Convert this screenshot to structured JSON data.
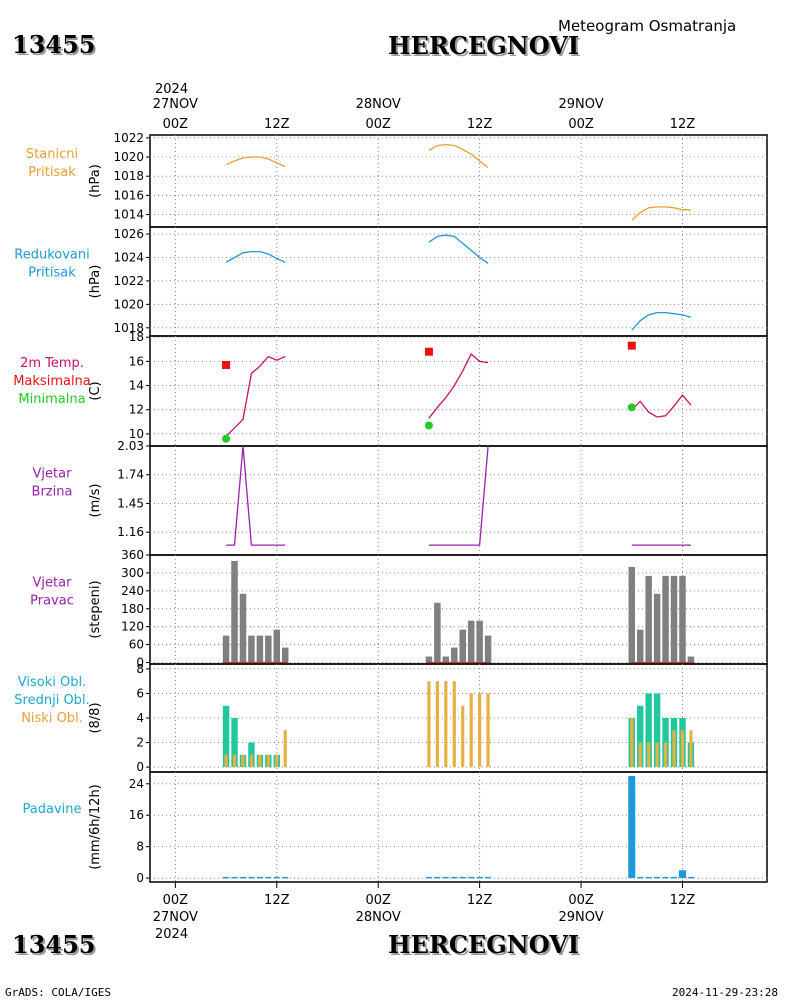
{
  "header": {
    "station_id": "13455",
    "station_name": "HERCEGNOVI",
    "subtitle": "Meteogram Osmatranja"
  },
  "time_axis": {
    "top_year": "2024",
    "bottom_year": "2024",
    "days": [
      {
        "label": "27NOV",
        "hour": 0
      },
      {
        "label": "28NOV",
        "hour": 24
      },
      {
        "label": "29NOV",
        "hour": 48
      }
    ],
    "ticks": [
      {
        "label": "00Z",
        "hour": 0
      },
      {
        "label": "12Z",
        "hour": 12
      },
      {
        "label": "00Z",
        "hour": 24
      },
      {
        "label": "12Z",
        "hour": 36
      },
      {
        "label": "00Z",
        "hour": 48
      },
      {
        "label": "12Z",
        "hour": 60
      }
    ],
    "range": [
      -3,
      70
    ]
  },
  "footer": {
    "left": "GrADS: COLA/IGES",
    "right": "2024-11-29-23:28"
  },
  "colors": {
    "station_pressure": "#e8a030",
    "reduced_pressure": "#1a9ad8",
    "temperature": "#c8106a",
    "max_marker": "#ee1111",
    "min_marker": "#22cc22",
    "wind": "#9a20b0",
    "wind_dir_bar": "#808080",
    "high_cloud": "#20c8a0",
    "mid_cloud": "#20c8a0",
    "low_cloud": "#e8b040",
    "precip": "#1a9ad8",
    "grid": "#888888"
  },
  "chart_data": [
    {
      "type": "line",
      "labels": [
        "Stanicni",
        "Pritisak"
      ],
      "label_color": "#e8a030",
      "ylabel": "(hPa)",
      "ylim": [
        1012.7,
        1022.3
      ],
      "yticks": [
        1014,
        1016,
        1018,
        1020,
        1022
      ],
      "series": [
        {
          "x": [
            6,
            7,
            8,
            9,
            10,
            11,
            12,
            13
          ],
          "y": [
            1019.2,
            1019.6,
            1019.9,
            1020.0,
            1020.0,
            1019.8,
            1019.4,
            1019.0
          ]
        },
        {
          "x": [
            30,
            31,
            32,
            33,
            34,
            35,
            36,
            37
          ],
          "y": [
            1020.7,
            1021.2,
            1021.3,
            1021.2,
            1020.8,
            1020.3,
            1019.6,
            1018.9
          ]
        },
        {
          "x": [
            54,
            55,
            56,
            57,
            58,
            59,
            60,
            61
          ],
          "y": [
            1013.4,
            1014.2,
            1014.7,
            1014.8,
            1014.8,
            1014.7,
            1014.5,
            1014.5
          ]
        }
      ]
    },
    {
      "type": "line",
      "labels": [
        "Redukovani",
        "Pritisak"
      ],
      "label_color": "#1a9ad8",
      "ylabel": "(hPa)",
      "ylim": [
        1017.3,
        1026.6
      ],
      "yticks": [
        1018,
        1020,
        1022,
        1024,
        1026
      ],
      "series": [
        {
          "x": [
            6,
            7,
            8,
            9,
            10,
            11,
            12,
            13
          ],
          "y": [
            1023.6,
            1024.0,
            1024.4,
            1024.5,
            1024.5,
            1024.3,
            1023.9,
            1023.6
          ]
        },
        {
          "x": [
            30,
            31,
            32,
            33,
            34,
            35,
            36,
            37
          ],
          "y": [
            1025.3,
            1025.8,
            1025.9,
            1025.8,
            1025.2,
            1024.6,
            1024.0,
            1023.5
          ]
        },
        {
          "x": [
            54,
            55,
            56,
            57,
            58,
            59,
            60,
            61
          ],
          "y": [
            1017.8,
            1018.6,
            1019.1,
            1019.3,
            1019.3,
            1019.2,
            1019.1,
            1018.9
          ]
        }
      ]
    },
    {
      "type": "line",
      "labels": [
        "2m Temp.",
        "Maksimalna",
        "Minimalna"
      ],
      "label_colors": [
        "#c8106a",
        "#ee1111",
        "#22cc22"
      ],
      "ylabel": "(C)",
      "ylim": [
        9.0,
        18.1
      ],
      "yticks": [
        10,
        12,
        14,
        16,
        18
      ],
      "series": [
        {
          "x": [
            6,
            7,
            8,
            9,
            10,
            11,
            12,
            13
          ],
          "y": [
            9.8,
            10.5,
            11.2,
            15.0,
            15.6,
            16.4,
            16.1,
            16.4
          ]
        },
        {
          "x": [
            30,
            31,
            32,
            33,
            34,
            35,
            36,
            37
          ],
          "y": [
            11.3,
            12.2,
            13.0,
            14.0,
            15.2,
            16.6,
            16.0,
            15.9
          ]
        },
        {
          "x": [
            54,
            55,
            56,
            57,
            58,
            59,
            60,
            61
          ],
          "y": [
            12.0,
            12.7,
            11.8,
            11.4,
            11.5,
            12.3,
            13.2,
            12.4
          ]
        }
      ],
      "max": [
        {
          "x": 6,
          "y": 15.7
        },
        {
          "x": 30,
          "y": 16.8
        },
        {
          "x": 54,
          "y": 17.3
        }
      ],
      "min": [
        {
          "x": 6,
          "y": 9.6
        },
        {
          "x": 30,
          "y": 10.7
        },
        {
          "x": 54,
          "y": 12.2
        }
      ]
    },
    {
      "type": "line",
      "labels": [
        "Vjetar",
        "Brzina"
      ],
      "label_color": "#9a20b0",
      "ylabel": "(m/s)",
      "ylim": [
        0.93,
        2.03
      ],
      "yticks": [
        1.16,
        1.45,
        1.74,
        2.03
      ],
      "series": [
        {
          "x": [
            6,
            7,
            8,
            9,
            10,
            11,
            12,
            13
          ],
          "y": [
            1.03,
            1.03,
            2.03,
            1.03,
            1.03,
            1.03,
            1.03,
            1.03
          ]
        },
        {
          "x": [
            30,
            31,
            32,
            33,
            34,
            35,
            36,
            37
          ],
          "y": [
            1.03,
            1.03,
            1.03,
            1.03,
            1.03,
            1.03,
            1.03,
            2.03
          ]
        },
        {
          "x": [
            54,
            55,
            56,
            57,
            58,
            59,
            60,
            61
          ],
          "y": [
            1.03,
            1.03,
            1.03,
            1.03,
            1.03,
            1.03,
            1.03,
            1.03
          ]
        }
      ]
    },
    {
      "type": "bar",
      "labels": [
        "Vjetar",
        "Pravac"
      ],
      "label_color": "#9a20b0",
      "ylabel": "(stepeni)",
      "ylim": [
        -5,
        360
      ],
      "yticks": [
        0,
        60,
        120,
        180,
        240,
        300,
        360
      ],
      "x": [
        6,
        7,
        8,
        9,
        10,
        11,
        12,
        13,
        30,
        31,
        32,
        33,
        34,
        35,
        36,
        37,
        54,
        55,
        56,
        57,
        58,
        59,
        60,
        61
      ],
      "values": [
        90,
        340,
        230,
        90,
        90,
        90,
        110,
        50,
        20,
        200,
        20,
        50,
        110,
        140,
        140,
        90,
        320,
        110,
        290,
        230,
        290,
        290,
        290,
        20
      ]
    },
    {
      "type": "bar",
      "labels": [
        "Visoki Obl.",
        "Srednji Obl.",
        "Niski Obl."
      ],
      "label_colors": [
        "#1aa8d0",
        "#1aa8d0",
        "#e8a030"
      ],
      "ylabel": "(8/8)",
      "ylim": [
        -0.4,
        8.4
      ],
      "yticks": [
        0,
        2,
        4,
        6,
        8
      ],
      "x": [
        6,
        7,
        8,
        9,
        10,
        11,
        12,
        13,
        30,
        31,
        32,
        33,
        34,
        35,
        36,
        37,
        54,
        55,
        56,
        57,
        58,
        59,
        60,
        61
      ],
      "series": [
        {
          "name": "Visoki Obl.",
          "values": [
            5,
            4,
            1,
            2,
            1,
            1,
            1,
            0,
            0,
            0,
            0,
            0,
            0,
            0,
            0,
            0,
            4,
            5,
            6,
            6,
            4,
            4,
            4,
            2
          ]
        },
        {
          "name": "Niski Obl.",
          "values": [
            1,
            1,
            1,
            1,
            1,
            1,
            1,
            3,
            7,
            7,
            7,
            7,
            5,
            6,
            6,
            6,
            4,
            2,
            2,
            2,
            2,
            3,
            3,
            3
          ]
        }
      ]
    },
    {
      "type": "bar",
      "labels": [
        "Padavine"
      ],
      "label_color": "#1aa8d0",
      "ylabel": "(mm/6h/12h)",
      "ylim": [
        -1,
        27
      ],
      "yticks": [
        0,
        8,
        16,
        24
      ],
      "x": [
        6,
        7,
        8,
        9,
        10,
        11,
        12,
        13,
        30,
        31,
        32,
        33,
        34,
        35,
        36,
        37,
        54,
        55,
        56,
        57,
        58,
        59,
        60,
        61
      ],
      "values": [
        0.3,
        0.3,
        0.3,
        0.3,
        0.3,
        0.3,
        0.3,
        0.3,
        0.3,
        0.3,
        0.3,
        0.3,
        0.3,
        0.3,
        0.3,
        0.3,
        26,
        0.3,
        0.3,
        0.3,
        0.3,
        0.3,
        2,
        0.3
      ]
    }
  ]
}
